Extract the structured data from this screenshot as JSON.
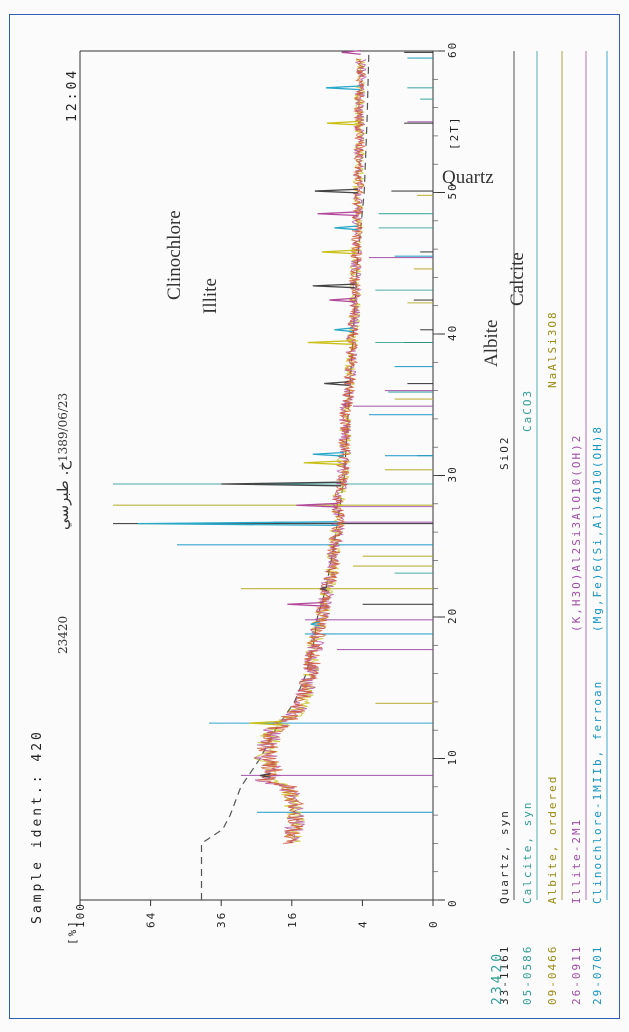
{
  "header": {
    "sample_ident": "Sample ident.: 420",
    "sample_number": "23420",
    "arabic_label": "خ. طبرسي",
    "date": "1389/06/23",
    "time": "12:04"
  },
  "footer_id": "23420",
  "chart_data": {
    "type": "line",
    "title": "",
    "xlabel": "[2T]",
    "ylabel": "[%]",
    "xlim": [
      0,
      60
    ],
    "ylim": [
      0,
      100
    ],
    "y_scale": "sqrt",
    "xticks": [
      0,
      10,
      20,
      30,
      40,
      50,
      60
    ],
    "xtick_labels": [
      "0",
      "10",
      "20",
      "30",
      "40",
      "50",
      "60"
    ],
    "yticks": [
      0,
      4,
      16,
      36,
      64,
      100
    ],
    "ytick_labels": [
      "0",
      "4",
      "16",
      "36",
      "64",
      "100"
    ],
    "grid": false,
    "series": [
      {
        "type": "pattern",
        "x": [
          4,
          5,
          6,
          7,
          8,
          8.5,
          9,
          10,
          11,
          12,
          13,
          14,
          15,
          16,
          17,
          18,
          19,
          20,
          21,
          22,
          23,
          24,
          25,
          26,
          27,
          28,
          29,
          30,
          32,
          34,
          36,
          38,
          40,
          42,
          44,
          46,
          48,
          50,
          52,
          54,
          56,
          58,
          59.5
        ],
        "y": [
          16,
          15.5,
          15,
          16,
          17,
          23,
          20,
          22.6,
          22.1,
          20.5,
          16,
          13.7,
          13,
          12.2,
          11.7,
          11.2,
          10.7,
          10,
          9.5,
          9,
          8.4,
          8,
          7.8,
          7.5,
          7.2,
          7.3,
          6.9,
          6.6,
          6.3,
          6.2,
          5.8,
          5.4,
          5.2,
          4.9,
          4.9,
          4.7,
          4.6,
          4.5,
          4.4,
          4.3,
          4.4,
          4.2,
          4.2
        ]
      },
      {
        "type": "background",
        "x": [
          0,
          4,
          5,
          6,
          7,
          8,
          10,
          12,
          14,
          16,
          18,
          20,
          22,
          25,
          28,
          30,
          35,
          40,
          45,
          50,
          55,
          60
        ],
        "y": [
          43,
          43,
          35.5,
          33,
          31.3,
          29.6,
          24,
          20,
          15.4,
          12.9,
          11.5,
          10.7,
          9.2,
          7.9,
          6.9,
          6.3,
          5.7,
          5.1,
          4.6,
          3.8,
          3.5,
          3.3
        ]
      },
      {
        "type": "peaks",
        "x": [
          8.8,
          12.5,
          19.5,
          20.9,
          22.0,
          23.1,
          26.6,
          27.9,
          29.4,
          30.9,
          31.5,
          35.0,
          36.5,
          39.4,
          40.3,
          42.4,
          43.4,
          45.8,
          47.5,
          48.5,
          50.1,
          54.9,
          57.4,
          59.9
        ],
        "y": [
          24,
          27,
          12,
          17,
          10,
          8.6,
          70,
          15,
          36,
          13.4,
          11.6,
          6.5,
          9.5,
          12.6,
          7.8,
          8.6,
          11.6,
          9.9,
          7.8,
          10.7,
          11.2,
          9,
          9.2,
          6.7
        ]
      }
    ],
    "phases": [
      {
        "ref": "33-1161",
        "name": "Quartz, syn",
        "formula": "SiO2",
        "color": "#2a2a2a"
      },
      {
        "ref": "05-0586",
        "name": "Calcite, syn",
        "formula": "CaCO3",
        "color": "#2d9e96"
      },
      {
        "ref": "09-0466",
        "name": "Albite, ordered",
        "formula": "NaAlSi3O8",
        "color": "#9a8a10"
      },
      {
        "ref": "26-0911",
        "name": "Illite-2M1",
        "formula": "(K,H3O)Al2Si3AlO10(OH)2",
        "color": "#a04ea8"
      },
      {
        "ref": "29-0701",
        "name": "Clinochlore-1MIIb, ferroan",
        "formula": "(Mg,Fe)6(Si,Al)4O10(OH)8",
        "color": "#1496c4"
      }
    ],
    "annotations": [
      "Clinochlore",
      "Illite",
      "Albite",
      "Calcite",
      "Quartz"
    ]
  }
}
